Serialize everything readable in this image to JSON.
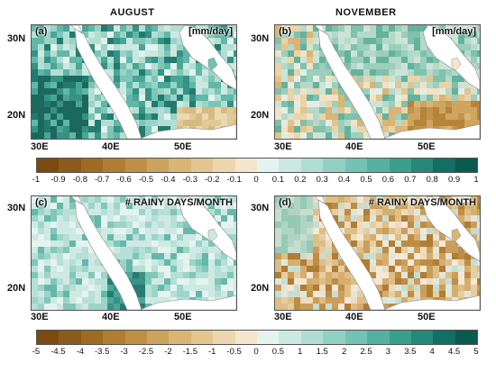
{
  "columns": {
    "left_title": "AUGUST",
    "right_title": "NOVEMBER"
  },
  "panels": {
    "a": {
      "letter": "(a)",
      "label": "[mm/day]",
      "tone": "green"
    },
    "b": {
      "letter": "(b)",
      "label": "[mm/day]",
      "tone": "mixed"
    },
    "c": {
      "letter": "(c)",
      "label": "# RAINY DAYS/MONTH",
      "tone": "lightgreen"
    },
    "d": {
      "letter": "(d)",
      "label": "# RAINY DAYS/MONTH",
      "tone": "brown"
    }
  },
  "axes": {
    "lat_ticks": [
      "30N",
      "20N"
    ],
    "lon_ticks": [
      "30E",
      "40E",
      "50E"
    ]
  },
  "colorbar_top": {
    "ticks": [
      "-1",
      "-0.9",
      "-0.8",
      "-0.7",
      "-0.6",
      "-0.5",
      "-0.4",
      "-0.3",
      "-0.2",
      "-0.1",
      "0",
      "0.1",
      "0.2",
      "0.3",
      "0.4",
      "0.5",
      "0.6",
      "0.7",
      "0.8",
      "0.9",
      "1"
    ]
  },
  "colorbar_bottom": {
    "ticks": [
      "-5",
      "-4.5",
      "-4",
      "-3.5",
      "-3",
      "-2.5",
      "-2",
      "-1.5",
      "-1",
      "-0.5",
      "0",
      "0.5",
      "1",
      "1.5",
      "2",
      "2.5",
      "3",
      "3.5",
      "4",
      "4.5",
      "5"
    ]
  },
  "palette": [
    "#7b4a10",
    "#8c5a1a",
    "#9f6b24",
    "#b07d33",
    "#bf8f45",
    "#cda25c",
    "#d9b474",
    "#e3c58f",
    "#ecd6ad",
    "#f4e6cc",
    "#fbf4e8",
    "#e4f3ef",
    "#cbe8e1",
    "#b0ddd3",
    "#93d0c4",
    "#74c2b3",
    "#55b1a1",
    "#3b9f8e",
    "#25887a",
    "#116f63",
    "#0a5a4f"
  ]
}
